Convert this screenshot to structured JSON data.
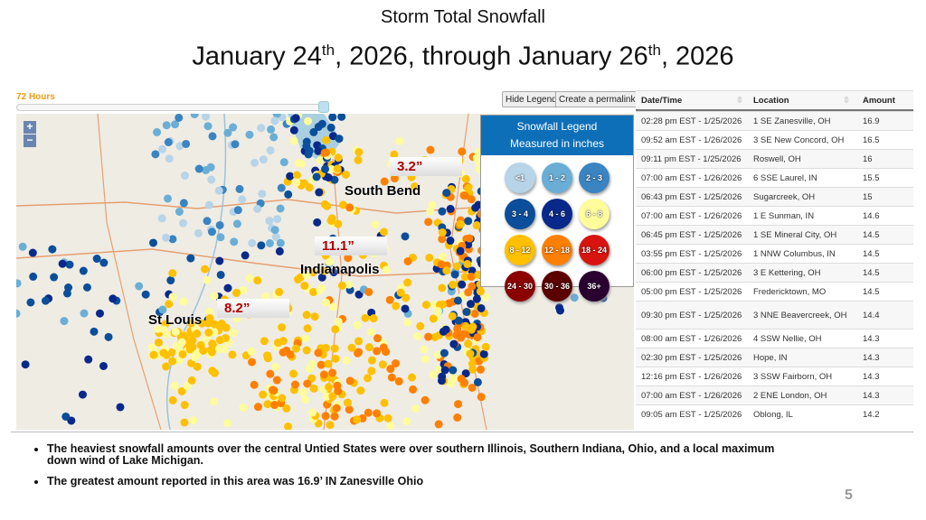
{
  "title": "Storm Total Snowfall",
  "subtitle": {
    "p1": "January 24",
    "s1": "th",
    "p2": ", 2026, through January 26",
    "s2": "th",
    "p3": ", 2026"
  },
  "map": {
    "time_window": "72 Hours",
    "slider_value": 1.0,
    "hide_legend": "Hide Legend",
    "permalink": "Create a permalink",
    "zoom_in": "+",
    "zoom_out": "−",
    "cities": [
      "St Louis",
      "Indianapolis",
      "South Bend"
    ],
    "amounts": [
      "8.2”",
      "11.1”",
      "3.2”"
    ],
    "legend": {
      "title1": "Snowfall Legend",
      "title2": "Measured in inches",
      "items": [
        {
          "label": "<1",
          "color": "#b7d4e8"
        },
        {
          "label": "1 - 2",
          "color": "#6aaed6"
        },
        {
          "label": "2 - 3",
          "color": "#3a84c2"
        },
        {
          "label": "3 - 4",
          "color": "#0b4e9a"
        },
        {
          "label": "4 - 6",
          "color": "#08298a"
        },
        {
          "label": "6 - 8",
          "color": "#fffc9c"
        },
        {
          "label": "8 - 12",
          "color": "#ffc000"
        },
        {
          "label": "12 - 18",
          "color": "#ff8000"
        },
        {
          "label": "18 - 24",
          "color": "#d81410"
        },
        {
          "label": "24 - 30",
          "color": "#8b0000"
        },
        {
          "label": "30 - 36",
          "color": "#5a0000"
        },
        {
          "label": "36+",
          "color": "#2a0030"
        }
      ]
    }
  },
  "table": {
    "headers": [
      "Date/Time",
      "Location",
      "Amount"
    ],
    "rows": [
      [
        "02:28 pm EST - 1/25/2026",
        "1 SE Zanesville, OH",
        "16.9"
      ],
      [
        "09:52 am EST - 1/26/2026",
        "3 SE New Concord, OH",
        "16.5"
      ],
      [
        "09:11 pm EST - 1/25/2026",
        "Roswell, OH",
        "16"
      ],
      [
        "07:00 am EST - 1/26/2026",
        "6 SSE Laurel, IN",
        "15.5"
      ],
      [
        "06:43 pm EST - 1/25/2026",
        "Sugarcreek, OH",
        "15"
      ],
      [
        "07:00 am EST - 1/26/2026",
        "1 E Sunman, IN",
        "14.6"
      ],
      [
        "06:45 pm EST - 1/25/2026",
        "1 SE Mineral City, OH",
        "14.5"
      ],
      [
        "03:55 pm EST - 1/25/2026",
        "1 NNW Columbus, IN",
        "14.5"
      ],
      [
        "06:00 pm EST - 1/25/2026",
        "3 E Kettering, OH",
        "14.5"
      ],
      [
        "05:00 pm EST - 1/25/2026",
        "Fredericktown, MO",
        "14.5"
      ],
      [
        "09:30 pm EST - 1/25/2026",
        "3 NNE Beavercreek, OH",
        "14.4"
      ],
      [
        "08:00 am EST - 1/26/2026",
        "4 SSW Nellie, OH",
        "14.3"
      ],
      [
        "02:30 pm EST - 1/25/2026",
        "Hope, IN",
        "14.3"
      ],
      [
        "12:16 pm EST - 1/26/2026",
        "3 SSW Fairborn, OH",
        "14.3"
      ],
      [
        "07:00 am EST - 1/26/2026",
        "2 ENE London, OH",
        "14.3"
      ],
      [
        "09:05 am EST - 1/25/2026",
        "Oblong, IL",
        "14.2"
      ]
    ]
  },
  "bullets": [
    "The heaviest snowfall amounts over the central Untied States were over southern Illinois, Southern Indiana, Ohio, and a local maximum down wind of Lake Michigan.",
    "The greatest amount reported in this area was 16.9’ IN Zanesville Ohio"
  ],
  "page_number": "5"
}
